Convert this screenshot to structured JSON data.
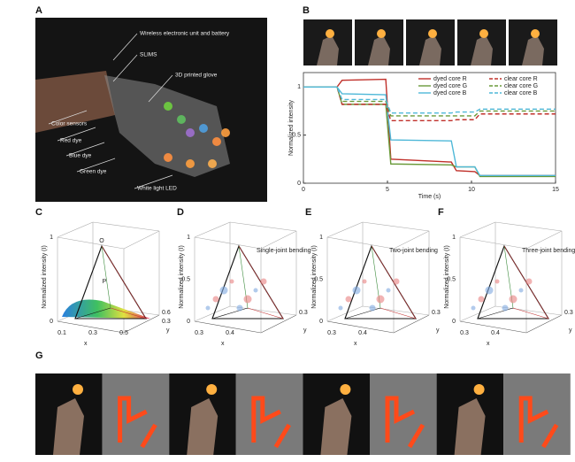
{
  "figure": {
    "panel_labels": [
      "A",
      "B",
      "C",
      "D",
      "E",
      "F",
      "G"
    ],
    "A": {
      "labels": [
        "Wireless electronic unit and battery",
        "SLIMS",
        "3D printed glove",
        "Color sensors",
        "Red dye",
        "Blue dye",
        "Green dye",
        "White light LED"
      ]
    },
    "C": {
      "z_label": "Normalized intensity (I)",
      "z_ticks": [
        "1",
        "0"
      ],
      "x_label": "x",
      "y_label": "y",
      "x_ticks": [
        "0.1",
        "0.3",
        "0.5"
      ],
      "y_ticks": [
        "0.6",
        "0.3"
      ],
      "markers": [
        "O",
        "P"
      ]
    },
    "D": {
      "annotation": "Single-joint bending",
      "z_label": "Normalized intensity (I)",
      "z_ticks": [
        "1",
        "0.5",
        "0"
      ],
      "x_label": "x",
      "y_label": "y",
      "x_ticks": [
        "0.3",
        "0.4"
      ],
      "y_ticks": [
        "0.3"
      ]
    },
    "E": {
      "annotation": "Two-joint bending",
      "z_label": "Normalized intensity (I)",
      "z_ticks": [
        "1",
        "0.5",
        "0"
      ],
      "x_label": "x",
      "y_label": "y",
      "x_ticks": [
        "0.3",
        "0.4"
      ],
      "y_ticks": [
        "0.3"
      ]
    },
    "F": {
      "annotation": "Three-joint bending",
      "z_label": "Normalized intensity (I)",
      "z_ticks": [
        "1",
        "0.5",
        "0"
      ],
      "x_label": "x",
      "y_label": "y",
      "x_ticks": [
        "0.3",
        "0.4"
      ],
      "y_ticks": [
        "0.3"
      ]
    }
  },
  "chart_data": {
    "type": "line",
    "x_label": "Time (s)",
    "y_label": "Normalized intensity",
    "x": [
      0,
      2,
      2.3,
      4.9,
      5.2,
      8.8,
      9.1,
      10.2,
      10.5,
      15
    ],
    "series": [
      {
        "name": "dyed core R",
        "color": "#c0302a",
        "dash": false,
        "values": [
          1.0,
          1.0,
          1.07,
          1.08,
          0.25,
          0.22,
          0.13,
          0.12,
          0.08,
          0.08
        ]
      },
      {
        "name": "dyed core G",
        "color": "#6a9a3a",
        "dash": false,
        "values": [
          1.0,
          1.0,
          0.82,
          0.82,
          0.2,
          0.19,
          0.17,
          0.17,
          0.07,
          0.07
        ]
      },
      {
        "name": "dyed core B",
        "color": "#4fb8d8",
        "dash": false,
        "values": [
          1.0,
          1.0,
          0.93,
          0.92,
          0.45,
          0.44,
          0.17,
          0.17,
          0.08,
          0.08
        ]
      },
      {
        "name": "clear core R",
        "color": "#c0302a",
        "dash": true,
        "values": [
          1.0,
          1.0,
          0.82,
          0.82,
          0.65,
          0.65,
          0.66,
          0.66,
          0.72,
          0.72
        ]
      },
      {
        "name": "clear core G",
        "color": "#6a9a3a",
        "dash": true,
        "values": [
          1.0,
          1.0,
          0.85,
          0.85,
          0.7,
          0.7,
          0.7,
          0.7,
          0.75,
          0.75
        ]
      },
      {
        "name": "clear core B",
        "color": "#4fb8d8",
        "dash": true,
        "values": [
          1.0,
          1.0,
          0.87,
          0.87,
          0.73,
          0.73,
          0.74,
          0.74,
          0.77,
          0.77
        ]
      }
    ],
    "xlim": [
      0,
      15
    ],
    "xticks": [
      0,
      5,
      10,
      15
    ],
    "ylim": [
      0,
      1.15
    ],
    "yticks": [
      0,
      0.5,
      1
    ]
  }
}
